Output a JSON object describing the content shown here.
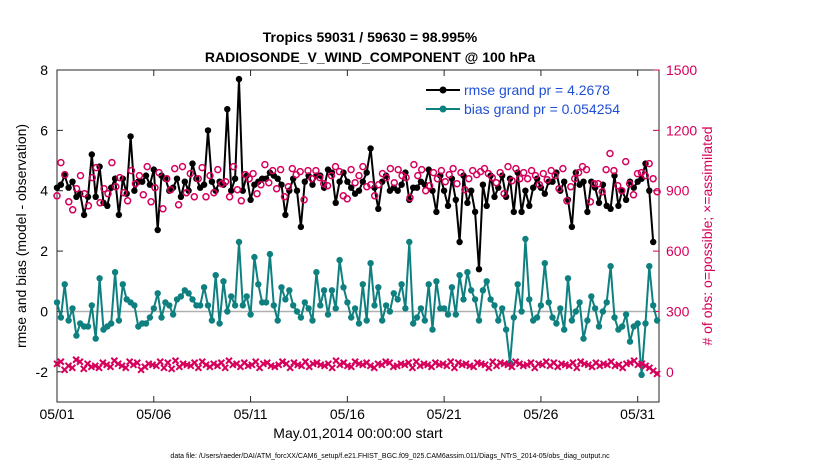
{
  "chart_data": {
    "type": "line",
    "title_line1": "Tropics 59031 / 59630 = 98.995%",
    "title_line2": "RADIOSONDE_V_WIND_COMPONENT @ 100 hPa",
    "xlabel": "May.01,2014 00:00:00 start",
    "ylabel_left": "rmse and bias (model - observation)",
    "ylabel_right": "# of obs: o=possible; ×=assimilated",
    "x_tick_labels": [
      "05/01",
      "05/06",
      "05/11",
      "05/16",
      "05/21",
      "05/26",
      "05/31"
    ],
    "x_tick_days": [
      0,
      5,
      10,
      15,
      20,
      25,
      30
    ],
    "xlim": [
      0,
      31.1
    ],
    "y_left_ticks": [
      "-2",
      "0",
      "2",
      "4",
      "6",
      "8"
    ],
    "y_left_tick_values": [
      -2,
      0,
      2,
      4,
      6,
      8
    ],
    "ylim_left": [
      -3,
      8
    ],
    "y_right_ticks": [
      "0",
      "300",
      "600",
      "900",
      "1200",
      "1500"
    ],
    "y_right_tick_values": [
      0,
      300,
      600,
      900,
      1200,
      1500
    ],
    "ylim_right": [
      -150,
      1500
    ],
    "zero_line": 0,
    "series": [
      {
        "name": "rmse grand pr = 4.2678",
        "axis": "left",
        "color": "#000000",
        "values": [
          4.1,
          4.2,
          4.5,
          4.1,
          4.3,
          3.8,
          3.9,
          3.2,
          3.8,
          5.2,
          3.8,
          4.8,
          3.6,
          3.5,
          4.1,
          4.4,
          3.2,
          4.4,
          3.9,
          5.8,
          4.0,
          4.3,
          4.3,
          4.5,
          4.2,
          4.7,
          2.7,
          4.5,
          4.4,
          4.0,
          4.1,
          4.4,
          3.8,
          4.3,
          4.0,
          4.9,
          4.4,
          4.1,
          4.2,
          6.0,
          4.3,
          4.0,
          4.3,
          4.2,
          6.7,
          4.0,
          4.4,
          7.7,
          4.0,
          4.5,
          3.7,
          4.2,
          4.3,
          4.4,
          4.4,
          4.6,
          4.5,
          4.4,
          4.2,
          3.2,
          4.0,
          4.4,
          4.0,
          2.8,
          4.3,
          4.5,
          4.2,
          4.5,
          4.5,
          4.1,
          4.7,
          4.6,
          3.6,
          4.3,
          4.6,
          4.3,
          4.1,
          3.9,
          4.0,
          4.3,
          4.6,
          5.4,
          4.1,
          3.4,
          4.3,
          4.5,
          4.0,
          4.1,
          4.0,
          4.2,
          4.6,
          3.7,
          4.1,
          4.1,
          4.3,
          4.2,
          4.7,
          4.0,
          3.3,
          4.5,
          4.0,
          3.5,
          4.4,
          3.7,
          2.3,
          4.5,
          3.6,
          4.0,
          3.3,
          1.4,
          4.2,
          3.5,
          4.5,
          3.8,
          4.1,
          4.5,
          3.8,
          4.4,
          3.3,
          4.6,
          3.3,
          4.0,
          3.5,
          4.1,
          4.4,
          4.1,
          3.9,
          4.3,
          4.3,
          4.6,
          4.0,
          4.3,
          3.7,
          2.8,
          4.6,
          4.2,
          4.3,
          3.3,
          4.3,
          4.1,
          3.6,
          4.2,
          3.5,
          3.4,
          4.5,
          3.5,
          4.0,
          3.7,
          4.3,
          4.1,
          4.3,
          4.4,
          4.9,
          4.0,
          2.3,
          null
        ],
        "marker": "filled-circle"
      },
      {
        "name": "bias grand pr = 0.054254",
        "axis": "left",
        "color": "#0f8080",
        "values": [
          0.3,
          -0.2,
          0.9,
          -0.3,
          0.1,
          -0.8,
          -0.4,
          -0.5,
          -0.5,
          0.2,
          -0.9,
          1.1,
          -0.6,
          -0.5,
          -0.4,
          1.3,
          -0.3,
          0.9,
          0.4,
          0.3,
          0.2,
          -0.5,
          -0.4,
          -0.4,
          -0.2,
          0.1,
          0.6,
          -0.2,
          0.3,
          0.2,
          -0.1,
          0.4,
          0.5,
          0.7,
          0.6,
          0.4,
          0.2,
          0.2,
          0.8,
          0.2,
          -0.3,
          1.2,
          -0.4,
          1.0,
          0.0,
          0.5,
          0.2,
          2.3,
          0.2,
          0.5,
          -0.1,
          1.8,
          0.9,
          0.3,
          0.3,
          1.9,
          0.2,
          -0.3,
          0.8,
          0.4,
          0.7,
          0.2,
          0.0,
          -0.2,
          0.3,
          0.1,
          -0.3,
          1.3,
          0.2,
          0.7,
          -0.1,
          0.7,
          0.1,
          1.7,
          0.8,
          0.3,
          -0.2,
          0.1,
          -0.4,
          0.9,
          -0.3,
          1.6,
          0.2,
          0.8,
          -0.3,
          0.2,
          0.0,
          0.6,
          0.4,
          0.9,
          0.1,
          2.3,
          -0.4,
          -0.2,
          0.1,
          -0.3,
          0.9,
          -0.6,
          1.0,
          0.1,
          0.1,
          -0.1,
          0.8,
          -0.1,
          1.2,
          0.4,
          1.3,
          0.7,
          0.4,
          -0.3,
          0.7,
          1.0,
          0.4,
          0.2,
          -0.3,
          0.1,
          -0.6,
          -1.7,
          -0.2,
          0.9,
          0.0,
          2.4,
          0.4,
          -0.3,
          -0.2,
          0.2,
          1.6,
          0.3,
          -0.2,
          -0.4,
          0.1,
          -0.6,
          1.1,
          -0.3,
          0.0,
          0.3,
          -0.9,
          -0.3,
          0.5,
          0.1,
          -0.5,
          0.0,
          0.3,
          1.5,
          -0.2,
          -0.6,
          -0.5,
          -0.1,
          -1.0,
          -0.5,
          -0.4,
          -2.1,
          -0.4,
          1.5,
          0.2,
          -0.3
        ],
        "marker": "filled-circle"
      },
      {
        "name": "possible",
        "axis": "right",
        "color": "#d6005c",
        "values": [
          875,
          1040,
          980,
          845,
          805,
          910,
          975,
          885,
          825,
          965,
          1015,
          840,
          910,
          885,
          1040,
          920,
          965,
          890,
          850,
          1000,
          935,
          975,
          880,
          1020,
          845,
          915,
          990,
          810,
          960,
          905,
          1010,
          830,
          1020,
          890,
          985,
          870,
          960,
          1015,
          870,
          975,
          890,
          1005,
          935,
          945,
          870,
          1020,
          905,
          850,
          980,
          960,
          985,
          885,
          930,
          1030,
          940,
          1000,
          910,
          1005,
          870,
          920,
          1010,
          980,
          995,
          855,
          1000,
          960,
          1000,
          965,
          935,
          925,
          975,
          1020,
          995,
          875,
          860,
          1005,
          940,
          975,
          1020,
          920,
          930,
          875,
          930,
          985,
          965,
          1010,
          940,
          1005,
          975,
          965,
          865,
          1030,
          975,
          1005,
          900,
          925,
          990,
          960,
          1000,
          945,
          980,
          1010,
          935,
          990,
          905,
          960,
          1000,
          980,
          995,
          1010,
          985,
          965,
          940,
          990,
          885,
          1020,
          950,
          1010,
          960,
          990,
          960,
          1000,
          975,
          930,
          985,
          955,
          1000,
          975,
          910,
          1010,
          850,
          920,
          960,
          990,
          1020,
          1005,
          845,
          935,
          935,
          895,
          1005,
          1085,
          1000,
          925,
          900,
          1045,
          935,
          880,
          985,
          990,
          975,
          1035,
          960,
          895
        ],
        "marker": "open-circle"
      },
      {
        "name": "assimilated",
        "axis": "right",
        "color": "#d6005c",
        "values": [
          40,
          50,
          10,
          30,
          20,
          60,
          50,
          15,
          40,
          25,
          30,
          20,
          45,
          35,
          25,
          55,
          40,
          30,
          20,
          50,
          35,
          45,
          10,
          25,
          40,
          35,
          30,
          50,
          20,
          45,
          15,
          55,
          25,
          40,
          35,
          30,
          45,
          20,
          50,
          35,
          25,
          40,
          30,
          45,
          20,
          55,
          35,
          40,
          25,
          45,
          30,
          35,
          50,
          20,
          40,
          45,
          30,
          25,
          35,
          50,
          40,
          20,
          45,
          35,
          30,
          50,
          25,
          40,
          45,
          35,
          30,
          40,
          20,
          55,
          35,
          45,
          30,
          25,
          50,
          40,
          35,
          45,
          30,
          20,
          40,
          35,
          50,
          45,
          25,
          30,
          40,
          35,
          45,
          20,
          50,
          30,
          40,
          35,
          25,
          45,
          35,
          40,
          30,
          50,
          20,
          45,
          35,
          40,
          30,
          25,
          45,
          40,
          35,
          20,
          50,
          30,
          45,
          40,
          35,
          25,
          50,
          40,
          30,
          35,
          45,
          20,
          40,
          35,
          50,
          30,
          45,
          25,
          40,
          35,
          30,
          45,
          20,
          50,
          40,
          35,
          25,
          45,
          30,
          40,
          35,
          50,
          30,
          35,
          20,
          40,
          45,
          55,
          35,
          40,
          30,
          20,
          5,
          -10
        ],
        "marker": "cross"
      }
    ],
    "legend": [
      {
        "label": "rmse grand pr = 4.2678",
        "color": "#000000"
      },
      {
        "label": "bias grand pr = 0.054254",
        "color": "#0f8080"
      }
    ],
    "legend_position": "top-right",
    "footnote": "data file: /Users/raeder/DAI/ATM_forcXX/CAM6_setup/f.e21.FHIST_BGC.f09_025.CAM6assim.011/Diags_NTrS_2014-05/obs_diag_output.nc"
  }
}
